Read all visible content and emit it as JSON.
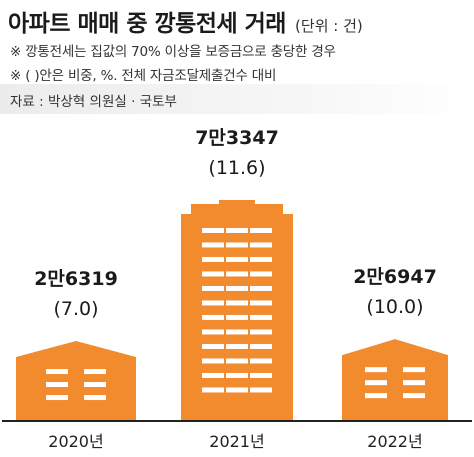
{
  "header": {
    "title": "아파트 매매 중 깡통전세 거래",
    "unit": "(단위 : 건)",
    "notes": [
      "※ 깡통전세는 집값의 70% 이상을 보증금으로 충당한 경우",
      "※ (  )안은 비중, %. 전체 자금조달제출건수 대비"
    ],
    "source": "자료 : 박상혁 의원실 · 국토부"
  },
  "colors": {
    "building": "#f28a2e",
    "window": "#ffffff",
    "baseline": "#222222"
  },
  "chart_data": {
    "type": "bar",
    "categories": [
      "2020년",
      "2021년",
      "2022년"
    ],
    "values": [
      26319,
      73347,
      26947
    ],
    "value_labels": [
      "2만6319",
      "7만3347",
      "2만6947"
    ],
    "share_labels": [
      "(7.0)",
      "(11.6)",
      "(10.0)"
    ],
    "shares": [
      7.0,
      11.6,
      10.0
    ],
    "ylim": [
      0,
      80000
    ],
    "grid": false,
    "legend": "none"
  }
}
